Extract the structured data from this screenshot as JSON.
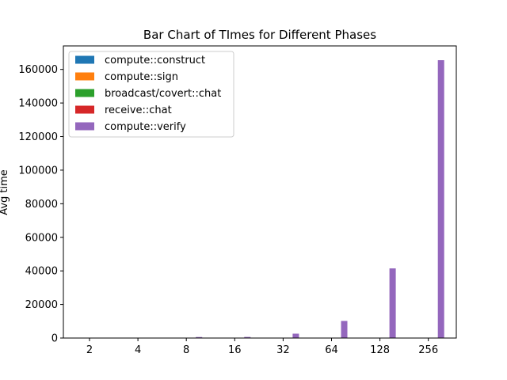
{
  "chart_data": {
    "type": "bar",
    "title": "Bar Chart of TImes for Different Phases",
    "xlabel": "",
    "ylabel": "Avg time",
    "categories": [
      "2",
      "4",
      "8",
      "16",
      "32",
      "64",
      "128",
      "256"
    ],
    "yticks": [
      0,
      20000,
      40000,
      60000,
      80000,
      100000,
      120000,
      140000,
      160000
    ],
    "ylim": [
      0,
      174000
    ],
    "legend_position": "upper-left",
    "grid": false,
    "series": [
      {
        "name": "compute::construct",
        "color": "#1f77b4",
        "values": [
          0,
          0,
          0,
          0,
          0,
          0,
          0,
          0
        ]
      },
      {
        "name": "compute::sign",
        "color": "#ff7f0e",
        "values": [
          0,
          0,
          0,
          0,
          0,
          0,
          0,
          0
        ]
      },
      {
        "name": "broadcast/covert::chat",
        "color": "#2ca02c",
        "values": [
          0,
          0,
          0,
          0,
          0,
          0,
          0,
          0
        ]
      },
      {
        "name": "receive::chat",
        "color": "#d62728",
        "values": [
          0,
          0,
          0,
          0,
          0,
          0,
          0,
          0
        ]
      },
      {
        "name": "compute::verify",
        "color": "#9467bd",
        "values": [
          30,
          150,
          600,
          650,
          2600,
          10200,
          41500,
          165500
        ]
      }
    ]
  }
}
